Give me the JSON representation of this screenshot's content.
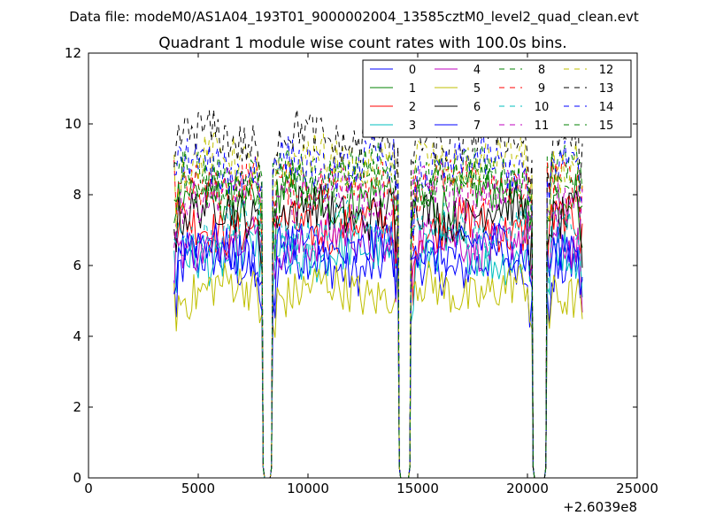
{
  "figure": {
    "suptitle": "Data file: modeM0/AS1A04_193T01_9000002004_13585cztM0_level2_quad_clean.evt"
  },
  "chart_data": {
    "type": "line",
    "title": "Quadrant 1 module wise count rates with 100.0s bins.",
    "xlabel": "",
    "ylabel": "",
    "xlim": [
      0,
      25000
    ],
    "ylim": [
      0,
      12
    ],
    "x_offset_label": "+2.6039e8",
    "x_ticks": [
      0,
      5000,
      10000,
      15000,
      20000,
      25000
    ],
    "x_tick_labels": [
      "0",
      "5000",
      "10000",
      "15000",
      "20000",
      "25000"
    ],
    "y_ticks": [
      0,
      2,
      4,
      6,
      8,
      10,
      12
    ],
    "y_tick_labels": [
      "0",
      "2",
      "4",
      "6",
      "8",
      "10",
      "12"
    ],
    "bin_size_s": 100,
    "segments": [
      {
        "start": 3900,
        "end": 7900
      },
      {
        "start": 8400,
        "end": 14100
      },
      {
        "start": 14700,
        "end": 20200
      },
      {
        "start": 20900,
        "end": 22500
      }
    ],
    "gaps": [
      {
        "from": 7900,
        "to": 8400
      },
      {
        "from": 14100,
        "to": 14700
      },
      {
        "from": 20200,
        "to": 20900
      }
    ],
    "legend_location": "top-right",
    "legend_columns": 4,
    "series": [
      {
        "name": "0",
        "color": "#0000ff",
        "dash": "solid",
        "mean_rate": 6.0
      },
      {
        "name": "1",
        "color": "#008000",
        "dash": "solid",
        "mean_rate": 7.9
      },
      {
        "name": "2",
        "color": "#ff0000",
        "dash": "solid",
        "mean_rate": 7.1
      },
      {
        "name": "3",
        "color": "#00bfbf",
        "dash": "solid",
        "mean_rate": 6.3
      },
      {
        "name": "4",
        "color": "#bf00bf",
        "dash": "solid",
        "mean_rate": 6.7
      },
      {
        "name": "5",
        "color": "#bfbf00",
        "dash": "solid",
        "mean_rate": 5.3
      },
      {
        "name": "6",
        "color": "#000000",
        "dash": "solid",
        "mean_rate": 7.5
      },
      {
        "name": "7",
        "color": "#0000ff",
        "dash": "solid",
        "mean_rate": 6.5
      },
      {
        "name": "8",
        "color": "#008000",
        "dash": "dashed",
        "mean_rate": 8.6
      },
      {
        "name": "9",
        "color": "#ff0000",
        "dash": "dashed",
        "mean_rate": 8.3
      },
      {
        "name": "10",
        "color": "#00bfbf",
        "dash": "dashed",
        "mean_rate": 7.0
      },
      {
        "name": "11",
        "color": "#bf00bf",
        "dash": "dashed",
        "mean_rate": 8.0
      },
      {
        "name": "12",
        "color": "#bfbf00",
        "dash": "dashed",
        "mean_rate": 8.9
      },
      {
        "name": "13",
        "color": "#000000",
        "dash": "dashed",
        "mean_rate": 9.6
      },
      {
        "name": "14",
        "color": "#0000ff",
        "dash": "dashed",
        "mean_rate": 8.8
      },
      {
        "name": "15",
        "color": "#008000",
        "dash": "dashed",
        "mean_rate": 8.4
      }
    ]
  }
}
